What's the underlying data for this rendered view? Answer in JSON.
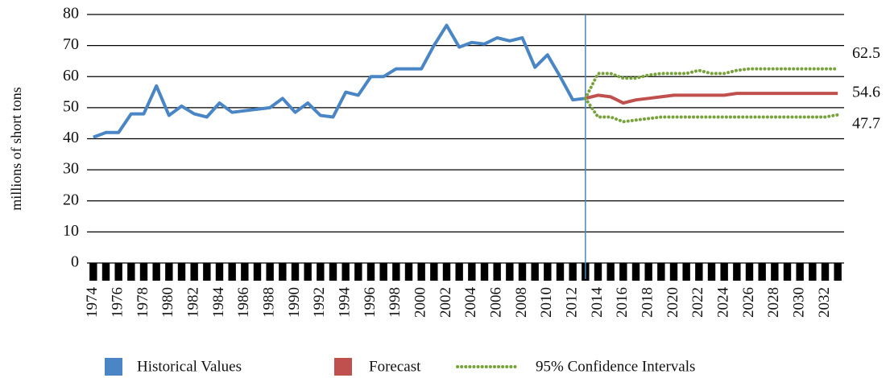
{
  "chart_data": {
    "type": "line",
    "ylabel": "millions of short tons",
    "categories": [
      "1974",
      null,
      "1976",
      null,
      "1978",
      null,
      "1980",
      null,
      "1982",
      null,
      "1984",
      null,
      "1986",
      null,
      "1988",
      null,
      "1990",
      null,
      "1992",
      null,
      "1994",
      null,
      "1996",
      null,
      "1998",
      null,
      "2000",
      null,
      "2002",
      null,
      "2004",
      null,
      "2006",
      null,
      "2008",
      null,
      "2010",
      null,
      "2012",
      null,
      "2014",
      null,
      "2016",
      null,
      "2018",
      null,
      "2020",
      null,
      "2022",
      null,
      "2024",
      null,
      "2026",
      null,
      "2028",
      null,
      "2030",
      null,
      "2032",
      null
    ],
    "series": [
      {
        "name": "Historical Values",
        "color": "#4a86c5",
        "values": [
          40.5,
          42,
          42,
          48,
          48,
          57,
          47.5,
          50.5,
          48,
          47,
          51.5,
          48.5,
          49,
          49.5,
          50,
          53,
          48.5,
          51.5,
          47.5,
          47,
          55,
          54,
          60,
          60,
          62.5,
          62.5,
          62.5,
          70,
          76.5,
          69.5,
          71,
          70.5,
          72.5,
          71.5,
          72.5,
          63,
          67,
          60,
          52.5,
          53,
          null,
          null,
          null,
          null,
          null,
          null,
          null,
          null,
          null,
          null,
          null,
          null,
          null,
          null,
          null,
          null,
          null,
          null,
          null,
          null
        ]
      },
      {
        "name": "Forecast",
        "color": "#c0504d",
        "values": [
          null,
          null,
          null,
          null,
          null,
          null,
          null,
          null,
          null,
          null,
          null,
          null,
          null,
          null,
          null,
          null,
          null,
          null,
          null,
          null,
          null,
          null,
          null,
          null,
          null,
          null,
          null,
          null,
          null,
          null,
          null,
          null,
          null,
          null,
          null,
          null,
          null,
          null,
          null,
          53,
          54,
          53.5,
          51.5,
          52.5,
          53,
          53.5,
          54,
          54,
          54,
          54,
          54,
          54.6,
          54.6,
          54.6,
          54.6,
          54.6,
          54.6,
          54.6,
          54.6,
          54.6
        ]
      },
      {
        "name": "95% Confidence Intervals",
        "color": "#77a33a",
        "upper": [
          null,
          null,
          null,
          null,
          null,
          null,
          null,
          null,
          null,
          null,
          null,
          null,
          null,
          null,
          null,
          null,
          null,
          null,
          null,
          null,
          null,
          null,
          null,
          null,
          null,
          null,
          null,
          null,
          null,
          null,
          null,
          null,
          null,
          null,
          null,
          null,
          null,
          null,
          null,
          53,
          61,
          61,
          59.5,
          59.5,
          60.5,
          61,
          61,
          61,
          62,
          61,
          61,
          62,
          62.5,
          62.5,
          62.5,
          62.5,
          62.5,
          62.5,
          62.5,
          62.5
        ],
        "lower": [
          null,
          null,
          null,
          null,
          null,
          null,
          null,
          null,
          null,
          null,
          null,
          null,
          null,
          null,
          null,
          null,
          null,
          null,
          null,
          null,
          null,
          null,
          null,
          null,
          null,
          null,
          null,
          null,
          null,
          null,
          null,
          null,
          null,
          null,
          null,
          null,
          null,
          null,
          null,
          53,
          47,
          47,
          45.5,
          46,
          46.5,
          47,
          47,
          47,
          47,
          47,
          47,
          47,
          47,
          47,
          47,
          47,
          47,
          47,
          47,
          47.7
        ]
      }
    ],
    "ylim": [
      0,
      80
    ],
    "yticks": [
      0,
      10,
      20,
      30,
      40,
      50,
      60,
      70,
      80
    ],
    "grid": true
  }
}
